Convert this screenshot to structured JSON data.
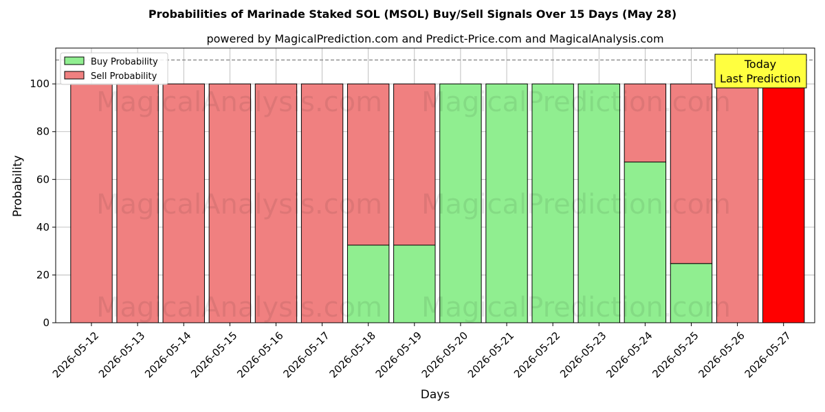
{
  "chart_data": {
    "type": "bar",
    "stacked": true,
    "title": "Probabilities of Marinade Staked SOL (MSOL) Buy/Sell Signals Over 15 Days (May 28)",
    "subtitle": "powered by MagicalPrediction.com and Predict-Price.com and MagicalAnalysis.com",
    "xlabel": "Days",
    "ylabel": "Probability",
    "ylim": [
      0,
      115
    ],
    "yticks": [
      0,
      20,
      40,
      60,
      80,
      100
    ],
    "categories": [
      "2026-05-12",
      "2026-05-13",
      "2026-05-14",
      "2026-05-15",
      "2026-05-16",
      "2026-05-17",
      "2026-05-18",
      "2026-05-19",
      "2026-05-20",
      "2026-05-21",
      "2026-05-22",
      "2026-05-23",
      "2026-05-24",
      "2026-05-25",
      "2026-05-26",
      "2026-05-27"
    ],
    "series": [
      {
        "name": "Buy Probability",
        "color": "#90ee90",
        "values": [
          0,
          0,
          0,
          0,
          0,
          0,
          32.5,
          32.5,
          100,
          100,
          100,
          100,
          67.3,
          24.8,
          0,
          0
        ]
      },
      {
        "name": "Sell Probability",
        "color": "#f08080",
        "values": [
          100,
          100,
          100,
          100,
          100,
          100,
          67.5,
          67.5,
          0,
          0,
          0,
          0,
          32.7,
          75.2,
          100,
          100
        ]
      }
    ],
    "highlight": {
      "index": 15,
      "color": "#ff0000"
    },
    "reference_line": {
      "y": 110,
      "style": "dashed",
      "color": "#808080"
    },
    "annotation": {
      "line1": "Today",
      "line2": "Last Prediction",
      "background": "#ffff40"
    },
    "grid": true,
    "legend": "top-left",
    "watermarks": [
      "MagicalAnalysis.com",
      "MagicalPrediction.com"
    ]
  }
}
